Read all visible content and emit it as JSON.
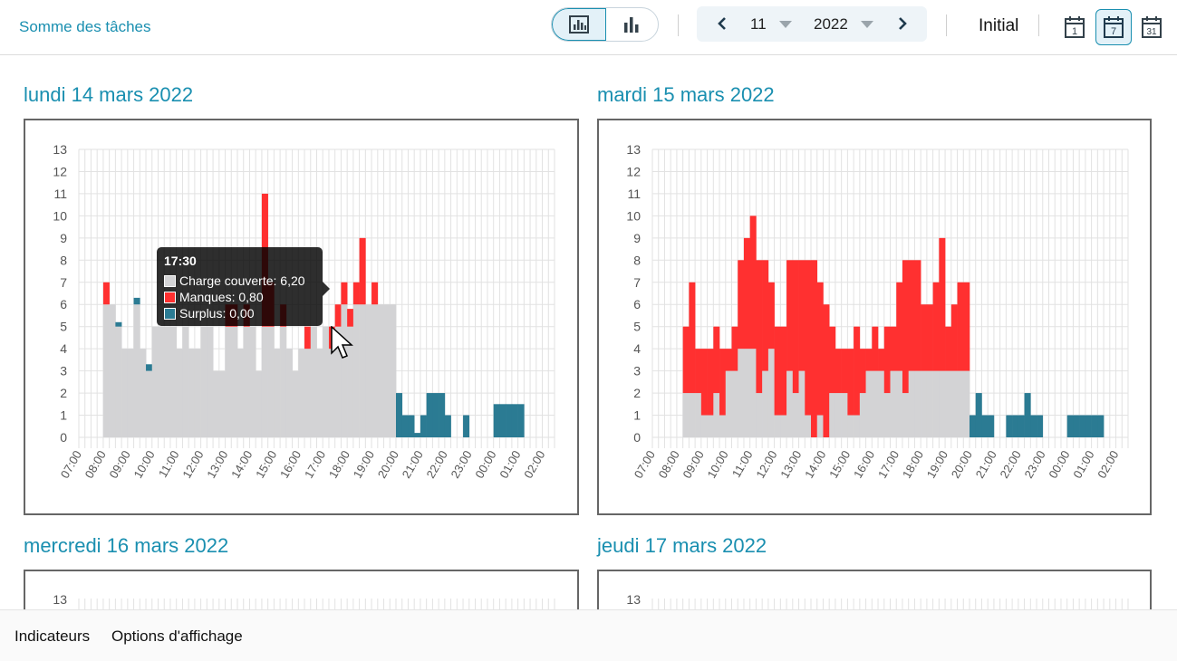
{
  "header": {
    "title": "Somme des tâches",
    "view_toggle": [
      {
        "icon": "bar-chart-framed-icon",
        "active": true
      },
      {
        "icon": "bar-chart-icon",
        "active": false
      }
    ],
    "period": {
      "week": "11",
      "year": "2022",
      "prev_icon": "chevron-left-icon",
      "next_icon": "chevron-right-icon"
    },
    "mode_label": "Initial",
    "calendar_views": [
      {
        "icon": "calendar-day-icon",
        "number": "1",
        "active": false
      },
      {
        "icon": "calendar-week-icon",
        "number": "7",
        "active": true
      },
      {
        "icon": "calendar-month-icon",
        "number": "31",
        "active": false
      }
    ]
  },
  "days": [
    {
      "title": "lundi 14 mars 2022"
    },
    {
      "title": "mardi 15 mars 2022"
    },
    {
      "title": "mercredi 16 mars 2022"
    },
    {
      "title": "jeudi 17 mars 2022"
    }
  ],
  "tooltip": {
    "time": "17:30",
    "rows": [
      {
        "label": "Charge couverte: 6,20",
        "color": "#d3d3d5"
      },
      {
        "label": "Manques: 0,80",
        "color": "#ff3030"
      },
      {
        "label": "Surplus: 0,00",
        "color": "#2b7b93"
      }
    ]
  },
  "footer": {
    "indicators": "Indicateurs",
    "display_options": "Options d'affichage"
  },
  "colors": {
    "covered": "#d3d3d5",
    "missing": "#ff3030",
    "surplus": "#2b7b93",
    "accent": "#1a8fb0"
  },
  "chart_data": [
    {
      "type": "bar",
      "stacked": true,
      "title": "lundi 14 mars 2022",
      "y_ticks": [
        "0",
        "1",
        "2",
        "3",
        "4",
        "5",
        "6",
        "7",
        "8",
        "9",
        "10",
        "11",
        "12",
        "13"
      ],
      "ylim": [
        0,
        13
      ],
      "x_ticks": [
        "07:00",
        "08:00",
        "09:00",
        "10:00",
        "11:00",
        "12:00",
        "13:00",
        "14:00",
        "15:00",
        "16:00",
        "17:00",
        "18:00",
        "19:00",
        "20:00",
        "21:00",
        "22:00",
        "23:00",
        "00:00",
        "01:00",
        "02:00"
      ],
      "x_start": "07:00",
      "bin_minutes": 15,
      "series": [
        {
          "name": "Charge couverte",
          "color": "#d3d3d5",
          "values": [
            0,
            0,
            0,
            0,
            6,
            6,
            5,
            4,
            4,
            6,
            4,
            3,
            5,
            5,
            5,
            5,
            4,
            5,
            4,
            4,
            5,
            5,
            3,
            3,
            5,
            5,
            4,
            5,
            5,
            3,
            5,
            5,
            4,
            5,
            4,
            3,
            4,
            4,
            5,
            4,
            5,
            4,
            5,
            6,
            5,
            6,
            6,
            6,
            6,
            6,
            6,
            6,
            0,
            0,
            0,
            0,
            0,
            0,
            0,
            0,
            0,
            0,
            0,
            0,
            0,
            0,
            0,
            0,
            0,
            0,
            0,
            0,
            0,
            0,
            0,
            0,
            0,
            0
          ]
        },
        {
          "name": "Manques",
          "color": "#ff3030",
          "values": [
            0,
            0,
            0,
            0,
            1,
            0,
            0,
            0,
            0,
            0,
            0,
            0,
            0,
            0,
            0,
            0,
            0,
            0,
            0,
            0,
            0,
            0,
            0,
            0,
            1,
            1,
            0,
            1,
            0,
            0,
            6,
            2,
            0,
            1,
            0,
            0,
            0,
            1,
            0,
            0,
            0,
            1,
            1,
            1,
            0.8,
            1,
            3,
            0,
            1,
            0,
            0,
            0,
            0,
            0,
            0,
            0,
            0,
            0,
            0,
            0,
            0,
            0,
            0,
            0,
            0,
            0,
            0,
            0,
            0,
            0,
            0,
            0,
            0,
            0,
            0,
            0,
            0,
            0
          ]
        },
        {
          "name": "Surplus",
          "color": "#2b7b93",
          "values": [
            0,
            0,
            0,
            0,
            0,
            0,
            0.2,
            0,
            0,
            0.3,
            0,
            0.3,
            0,
            0,
            0,
            0,
            0,
            0,
            0,
            0,
            0,
            0,
            0,
            0,
            0,
            0,
            0,
            0,
            0,
            0,
            0,
            0,
            0,
            0,
            0,
            0,
            0,
            0,
            0,
            0,
            0,
            0,
            0,
            0,
            0,
            0,
            0,
            0,
            0,
            0,
            0,
            0,
            2,
            1,
            1,
            0.2,
            1,
            2,
            2,
            2,
            1,
            0,
            0,
            1,
            0,
            0,
            0,
            0,
            1.5,
            1.5,
            1.5,
            1.5,
            1.5,
            0,
            0,
            0,
            0,
            0
          ]
        }
      ]
    },
    {
      "type": "bar",
      "stacked": true,
      "title": "mardi 15 mars 2022",
      "y_ticks": [
        "0",
        "1",
        "2",
        "3",
        "4",
        "5",
        "6",
        "7",
        "8",
        "9",
        "10",
        "11",
        "12",
        "13"
      ],
      "ylim": [
        0,
        13
      ],
      "x_ticks": [
        "07:00",
        "08:00",
        "09:00",
        "10:00",
        "11:00",
        "12:00",
        "13:00",
        "14:00",
        "15:00",
        "16:00",
        "17:00",
        "18:00",
        "19:00",
        "20:00",
        "21:00",
        "22:00",
        "23:00",
        "00:00",
        "01:00",
        "02:00"
      ],
      "x_start": "07:00",
      "bin_minutes": 15,
      "series": [
        {
          "name": "Charge couverte",
          "color": "#d3d3d5",
          "values": [
            0,
            0,
            0,
            0,
            0,
            2,
            2,
            2,
            1,
            1,
            2,
            1,
            3,
            3,
            4,
            4,
            4,
            2,
            3,
            4,
            1,
            1,
            3,
            2,
            3,
            1,
            0,
            1,
            0,
            2,
            2,
            2,
            1,
            1,
            2,
            3,
            3,
            3,
            2,
            3,
            3,
            2,
            3,
            3,
            3,
            3,
            3,
            3,
            3,
            3,
            3,
            3,
            0,
            0,
            0,
            0,
            0,
            0,
            0,
            0,
            0,
            0,
            0,
            0,
            0,
            0,
            0,
            0,
            0,
            0,
            0,
            0,
            0,
            0,
            0,
            0,
            0,
            0
          ]
        },
        {
          "name": "Manques",
          "color": "#ff3030",
          "values": [
            0,
            0,
            0,
            0,
            0,
            3,
            5,
            2,
            3,
            3,
            3,
            3,
            1,
            2,
            4,
            5,
            6,
            6,
            5,
            3,
            4,
            4,
            5,
            6,
            5,
            7,
            8,
            6,
            6,
            3,
            2,
            2,
            3,
            4,
            2,
            1,
            2,
            1,
            3,
            2,
            4,
            6,
            5,
            5,
            3,
            3,
            4,
            6,
            2,
            3,
            4,
            4,
            0,
            0,
            0,
            0,
            0,
            0,
            0,
            0,
            0,
            0,
            0,
            0,
            0,
            0,
            0,
            0,
            0,
            0,
            0,
            0,
            0,
            0,
            0,
            0,
            0,
            0
          ]
        },
        {
          "name": "Surplus",
          "color": "#2b7b93",
          "values": [
            0,
            0,
            0,
            0,
            0,
            0,
            0,
            0,
            0,
            0,
            0,
            0,
            0,
            0,
            0,
            0,
            0,
            0,
            0,
            0,
            0,
            0,
            0,
            0,
            0,
            0,
            0,
            0,
            0,
            0,
            0,
            0,
            0,
            0,
            0,
            0,
            0,
            0,
            0,
            0,
            0,
            0,
            0,
            0,
            0,
            0,
            0,
            0,
            0,
            0,
            0,
            0,
            1,
            2,
            1,
            1,
            0,
            0,
            1,
            1,
            1,
            2,
            1,
            1,
            0,
            0,
            0,
            0,
            1,
            1,
            1,
            1,
            1,
            1,
            0,
            0,
            0,
            0
          ]
        }
      ]
    },
    {
      "type": "bar",
      "title": "mercredi 16 mars 2022",
      "y_ticks": [
        "13"
      ]
    },
    {
      "type": "bar",
      "title": "jeudi 17 mars 2022",
      "y_ticks": [
        "13"
      ]
    }
  ]
}
